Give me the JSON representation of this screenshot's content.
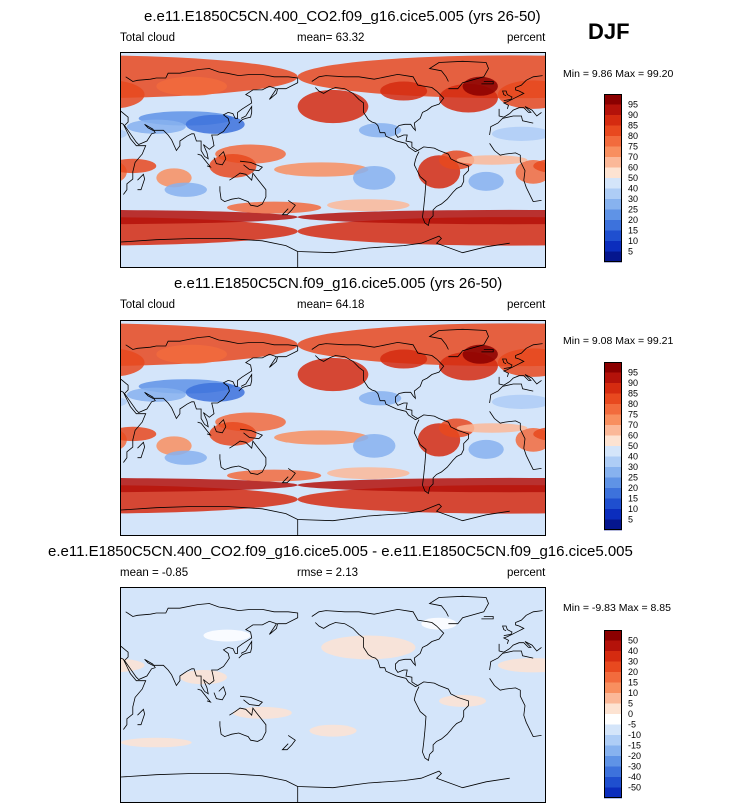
{
  "season_label": "DJF",
  "panels": [
    {
      "title": "e.e11.E1850C5CN.400_CO2.f09_g16.cice5.005 (yrs 26-50)",
      "left_label": "Total cloud",
      "center_label": "mean=  63.32",
      "right_label": "percent",
      "minmax": "Min =   9.86 Max =  99.20"
    },
    {
      "title": "e.e11.E1850C5CN.f09_g16.cice5.005 (yrs 26-50)",
      "left_label": "Total cloud",
      "center_label": "mean=  64.18",
      "right_label": "percent",
      "minmax": "Min =   9.08 Max =  99.21"
    },
    {
      "title": "e.e11.E1850C5CN.400_CO2.f09_g16.cice5.005 - e.e11.E1850C5CN.f09_g16.cice5.005",
      "left_label": "mean =  -0.85",
      "center_label": "rmse =   2.13",
      "right_label": "percent",
      "minmax": "Min =  -9.83 Max =   8.85"
    }
  ],
  "chart_data": [
    {
      "type": "heatmap",
      "title": "e.e11.E1850C5CN.400_CO2.f09_g16.cice5.005 (yrs 26-50)",
      "variable": "Total cloud",
      "units": "percent",
      "mean": 63.32,
      "min": 9.86,
      "max": 99.2,
      "colorbar_levels": [
        95,
        90,
        85,
        80,
        75,
        70,
        60,
        50,
        40,
        30,
        25,
        20,
        15,
        10,
        5
      ],
      "colorbar_colors": [
        "#8b0000",
        "#b4120a",
        "#d52b10",
        "#e8491f",
        "#f26b3d",
        "#f88f5f",
        "#fbb898",
        "#fde3d2",
        "#d4e5fa",
        "#aecdf6",
        "#87b2ef",
        "#5f93e6",
        "#3d72dc",
        "#1f4fcf",
        "#0b2dbd",
        "#05168e"
      ]
    },
    {
      "type": "heatmap",
      "title": "e.e11.E1850C5CN.f09_g16.cice5.005 (yrs 26-50)",
      "variable": "Total cloud",
      "units": "percent",
      "mean": 64.18,
      "min": 9.08,
      "max": 99.21,
      "colorbar_levels": [
        95,
        90,
        85,
        80,
        75,
        70,
        60,
        50,
        40,
        30,
        25,
        20,
        15,
        10,
        5
      ],
      "colorbar_colors": [
        "#8b0000",
        "#b4120a",
        "#d52b10",
        "#e8491f",
        "#f26b3d",
        "#f88f5f",
        "#fbb898",
        "#fde3d2",
        "#d4e5fa",
        "#aecdf6",
        "#87b2ef",
        "#5f93e6",
        "#3d72dc",
        "#1f4fcf",
        "#0b2dbd",
        "#05168e"
      ]
    },
    {
      "type": "heatmap",
      "title": "e.e11.E1850C5CN.400_CO2.f09_g16.cice5.005 - e.e11.E1850C5CN.f09_g16.cice5.005",
      "units": "percent",
      "mean": -0.85,
      "rmse": 2.13,
      "min": -9.83,
      "max": 8.85,
      "colorbar_levels": [
        50,
        40,
        30,
        20,
        15,
        10,
        5,
        0,
        -5,
        -10,
        -15,
        -20,
        -30,
        -40,
        -50
      ],
      "colorbar_colors": [
        "#8b0000",
        "#b4120a",
        "#d52b10",
        "#e8491f",
        "#f26b3d",
        "#f88f5f",
        "#fbb898",
        "#fde3d2",
        "#ffffff",
        "#d4e5fa",
        "#aecdf6",
        "#87b2ef",
        "#5f93e6",
        "#3d72dc",
        "#1f4fcf",
        "#0b2dbd"
      ]
    }
  ]
}
